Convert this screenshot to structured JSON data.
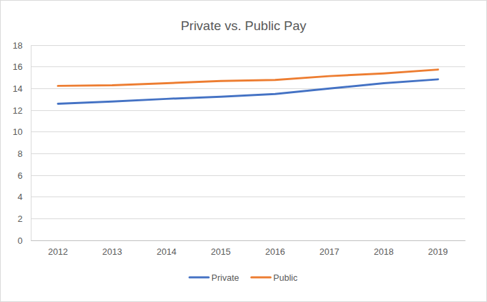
{
  "chart_data": {
    "type": "line",
    "title": "Private vs. Public Pay",
    "categories": [
      "2012",
      "2013",
      "2014",
      "2015",
      "2016",
      "2017",
      "2018",
      "2019"
    ],
    "series": [
      {
        "name": "Private",
        "color": "#4472c4",
        "values": [
          12.6,
          12.8,
          13.05,
          13.25,
          13.5,
          14.0,
          14.5,
          14.85
        ]
      },
      {
        "name": "Public",
        "color": "#ed7d31",
        "values": [
          14.25,
          14.3,
          14.5,
          14.7,
          14.8,
          15.15,
          15.4,
          15.75
        ]
      }
    ],
    "ylim": [
      0,
      18
    ],
    "yticks": [
      0,
      2,
      4,
      6,
      8,
      10,
      12,
      14,
      16,
      18
    ],
    "grid": true,
    "legend": "bottom"
  }
}
